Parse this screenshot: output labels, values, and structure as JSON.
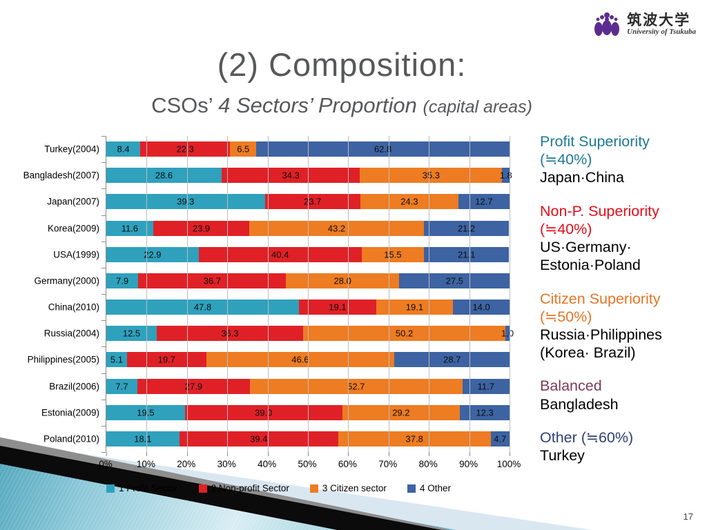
{
  "slide": {
    "title": "(2) Composition:",
    "subtitle_plain": "CSOs’ ",
    "subtitle_italic": "4 Sectors’ Proportion ",
    "subtitle_paren": "(capital areas)",
    "page_number": "17"
  },
  "logo": {
    "jp": "筑波大学",
    "en": "University of Tsukuba",
    "crest_color": "#5b2d90"
  },
  "chart_data": {
    "type": "bar",
    "orientation": "horizontal-stacked",
    "title": "",
    "xlabel": "",
    "ylabel": "",
    "xlim": [
      0,
      100
    ],
    "grid": true,
    "legend_position": "bottom",
    "x_ticks": [
      "0%",
      "10%",
      "20%",
      "30%",
      "40%",
      "50%",
      "60%",
      "70%",
      "80%",
      "90%",
      "100%"
    ],
    "categories": [
      "Turkey(2004)",
      "Bangladesh(2007)",
      "Japan(2007)",
      "Korea(2009)",
      "USA(1999)",
      "Germany(2000)",
      "China(2010)",
      "Russia(2004)",
      "Philippines(2005)",
      "Brazil(2006)",
      "Estonia(2009)",
      "Poland(2010)"
    ],
    "series": [
      {
        "name": "1 Profit Sector",
        "color": "#2fa1bd",
        "values": [
          "8.4",
          "28.6",
          "39.3",
          "11.6",
          "22.9",
          "7.9",
          "47.8",
          "12.5",
          "5.1",
          "7.7",
          "19.5",
          "18.1"
        ]
      },
      {
        "name": "2 Non-profit Sector",
        "color": "#df2127",
        "values": [
          "22.3",
          "34.3",
          "23.7",
          "23.9",
          "40.4",
          "36.7",
          "19.1",
          "36.3",
          "19.7",
          "27.9",
          "39.0",
          "39.4"
        ]
      },
      {
        "name": "3 Citizen sector",
        "color": "#ee7c22",
        "values": [
          "6.5",
          "35.3",
          "24.3",
          "43.2",
          "15.5",
          "28.0",
          "19.1",
          "50.2",
          "46.6",
          "52.7",
          "29.2",
          "37.8"
        ]
      },
      {
        "name": "4 Other",
        "color": "#3d63a2",
        "values": [
          "62.8",
          "1.8",
          "12.7",
          "21.2",
          "21.1",
          "27.5",
          "14.0",
          "1.0",
          "28.7",
          "11.7",
          "12.3",
          "4.7"
        ]
      }
    ]
  },
  "annotations": [
    {
      "color": "#1d7a93",
      "heading_lines": [
        "Profit Superiority",
        "(≒40%)"
      ],
      "body_lines": [
        "Japan·China"
      ]
    },
    {
      "color": "#e60e1a",
      "heading_lines": [
        "Non-P. Superiority",
        "(≒40%)"
      ],
      "body_lines": [
        "US·Germany·",
        "Estonia·Poland"
      ]
    },
    {
      "color": "#e87424",
      "heading_lines": [
        "Citizen Superiority",
        "(≒50%)"
      ],
      "body_lines": [
        "Russia·Philippines",
        "(Korea· Brazil)"
      ]
    },
    {
      "color": "#7d3a55",
      "heading_lines": [
        "Balanced"
      ],
      "body_lines": [
        "Bangladesh"
      ]
    },
    {
      "color": "#2e3f77",
      "heading_lines": [
        "Other (≒60%)"
      ],
      "body_lines": [
        "Turkey"
      ]
    }
  ]
}
